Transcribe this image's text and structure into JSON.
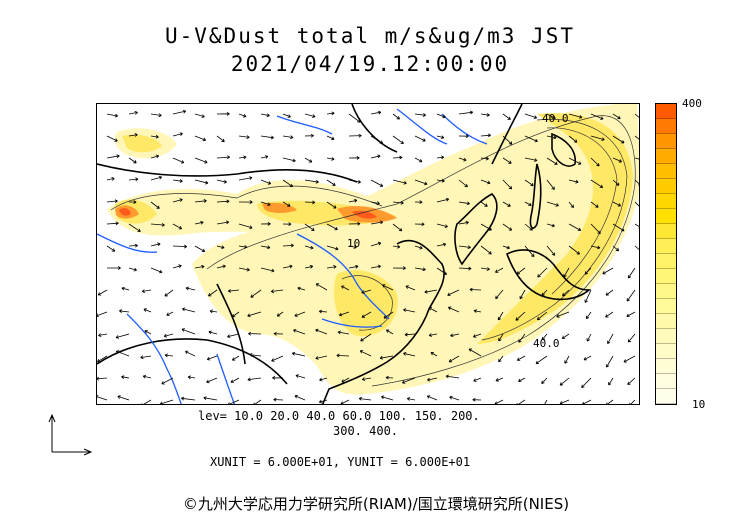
{
  "title": {
    "line1": "U-V&Dust total m/s&ug/m3 JST",
    "line2": "2021/04/19.12:00:00"
  },
  "levels": {
    "line1": "lev= 10.0 20.0 40.0 60.0 100. 150. 200.",
    "line2": "300. 400."
  },
  "units": "XUNIT = 6.000E+01, YUNIT = 6.000E+01",
  "colorbar": {
    "max_label": "400",
    "min_label": "10",
    "colors": [
      "#ff5a00",
      "#ff7a00",
      "#ff9500",
      "#ffab00",
      "#ffbe00",
      "#ffcc00",
      "#ffd700",
      "#ffe000",
      "#ffe833",
      "#ffee55",
      "#fff266",
      "#fff577",
      "#fff788",
      "#fff999",
      "#fffaaa",
      "#fffbbb",
      "#fffcc8",
      "#fffdd5",
      "#fffde0",
      "#fffeeb"
    ]
  },
  "contour_labels": [
    "40.0",
    "40.0",
    "10"
  ],
  "credit": "©九州大学応用力学研究所(RIAM)/国立環境研究所(NIES)",
  "map": {
    "dust_light": "#fff6b8",
    "dust_mid": "#ffe866",
    "dust_high": "#ff9a2e",
    "dust_peak": "#ff5a1a",
    "coast_color": "#000000",
    "river_color": "#1e5cff",
    "arrow_color": "#000000"
  }
}
